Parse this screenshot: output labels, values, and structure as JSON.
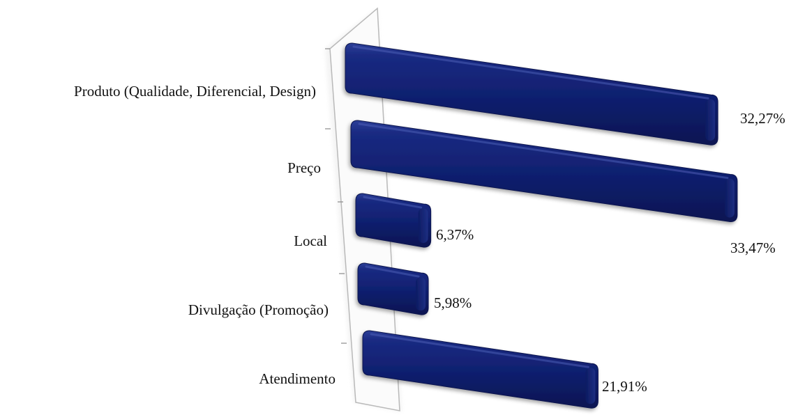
{
  "chart_data": {
    "type": "bar",
    "orientation": "horizontal",
    "style": "3d-perspective",
    "categories": [
      "Produto (Qualidade, Diferencial, Design)",
      "Preço",
      "Local",
      "Divulgação (Promoção)",
      "Atendimento"
    ],
    "values": [
      32.27,
      33.47,
      6.37,
      5.98,
      21.91
    ],
    "value_labels": [
      "32,27%",
      "33,47%",
      "6,37%",
      "5,98%",
      "21,91%"
    ],
    "unit": "%",
    "xlim": [
      0,
      33.47
    ],
    "bar_color": "#0f1f6e",
    "bar_highlight_color": "#3a4fa8",
    "grid": false,
    "legend": "none"
  }
}
